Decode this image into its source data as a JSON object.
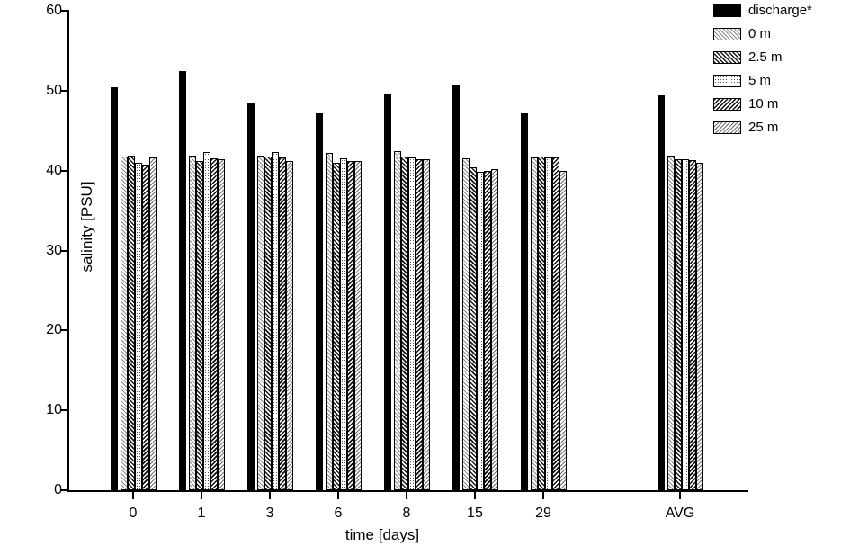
{
  "chart_data": {
    "type": "bar",
    "title": "",
    "xlabel": "time [days]",
    "ylabel": "salinity [PSU]",
    "ylim": [
      0,
      60
    ],
    "yticks": [
      0,
      10,
      20,
      30,
      40,
      50,
      60
    ],
    "categories": [
      "0",
      "1",
      "3",
      "6",
      "8",
      "15",
      "29",
      "AVG"
    ],
    "group_slots": [
      0,
      1,
      2,
      3,
      4,
      5,
      6,
      8
    ],
    "grid": false,
    "legend_position": "top-right",
    "bar_outline_color": "#000000",
    "discharge_fill_color": "#000000",
    "series": [
      {
        "name": "discharge*",
        "pattern": "solid",
        "values": [
          50.4,
          52.5,
          48.5,
          47.2,
          49.6,
          50.7,
          47.2,
          49.4
        ]
      },
      {
        "name": "0 m",
        "pattern": "diag-light",
        "values": [
          41.8,
          41.9,
          41.9,
          42.2,
          42.4,
          41.5,
          41.6,
          41.9
        ]
      },
      {
        "name": "2.5 m",
        "pattern": "diag-dark",
        "values": [
          41.9,
          41.2,
          41.8,
          41.0,
          41.8,
          40.4,
          41.8,
          41.4
        ]
      },
      {
        "name": "5 m",
        "pattern": "dots",
        "values": [
          41.0,
          42.3,
          42.3,
          41.5,
          41.6,
          39.8,
          41.6,
          41.4
        ]
      },
      {
        "name": "10 m",
        "pattern": "diag-dark-rev",
        "values": [
          40.8,
          41.5,
          41.7,
          41.2,
          41.4,
          40.0,
          41.7,
          41.3
        ]
      },
      {
        "name": "25 m",
        "pattern": "diag-med",
        "values": [
          41.7,
          41.4,
          41.2,
          41.2,
          41.4,
          40.2,
          40.0,
          41.0
        ]
      }
    ]
  }
}
